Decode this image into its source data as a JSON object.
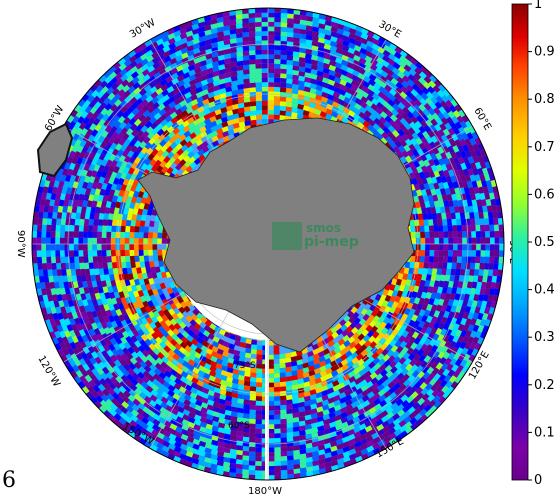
{
  "projection": "south-polar-stereographic",
  "variable_colormap": {
    "colors": [
      "#6a008a",
      "#7a00a8",
      "#3500c8",
      "#0000ff",
      "#0060ff",
      "#00a8ff",
      "#00e0ff",
      "#30f0a0",
      "#90ff30",
      "#e0ff00",
      "#ffd000",
      "#ff9000",
      "#ff4000",
      "#e00000",
      "#8a0000"
    ],
    "min": 0,
    "max": 1,
    "tick_labels": [
      "0",
      "0.1",
      "0.2",
      "0.3",
      "0.4",
      "0.5",
      "0.6",
      "0.7",
      "0.8",
      "0.9",
      "1"
    ]
  },
  "longitude_labels": [
    "30°W",
    "30°E",
    "60°W",
    "60°E",
    "90°W",
    "90°E",
    "120°W",
    "120°E",
    "150°W",
    "150°E",
    "180°W"
  ],
  "latitude_labels": [
    "60°S",
    "75°S"
  ],
  "watermark": {
    "line1": "smos",
    "line2": "pi-mep"
  },
  "page_number": "6",
  "colors": {
    "land": "#808080",
    "coast_fringe": "#222222",
    "ocean_nodata": "#ffffff",
    "graticule": "#bbbbbb",
    "watermark": "#2e8b57"
  }
}
